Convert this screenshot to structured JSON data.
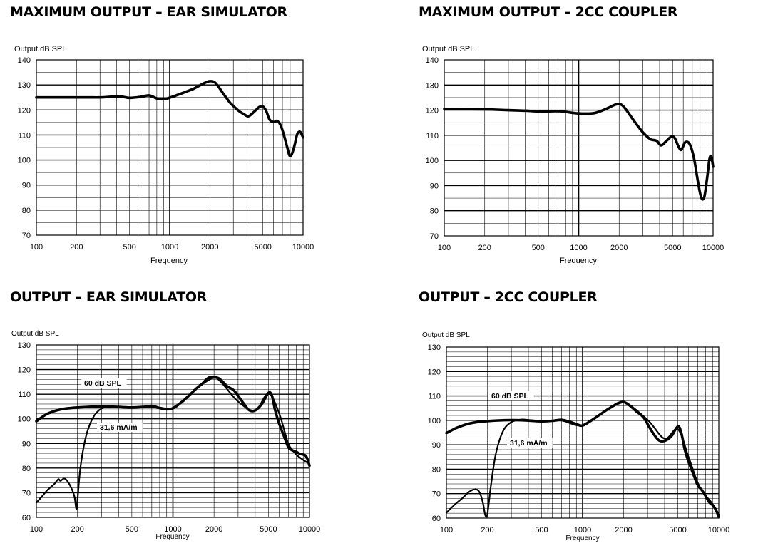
{
  "chart_data": [
    {
      "type": "line",
      "title": "MAXIMUM OUTPUT – EAR SIMULATOR",
      "ylabel": "Output dB SPL",
      "xlabel": "Frequency",
      "xscale": "log",
      "xlim": [
        100,
        10000
      ],
      "ylim": [
        70,
        140
      ],
      "x_tick_labels": [
        "100",
        "200",
        "500",
        "1000",
        "2000",
        "5000",
        "10000"
      ],
      "y_tick_labels": [
        "70",
        "80",
        "90",
        "100",
        "110",
        "120",
        "130",
        "140"
      ],
      "grid": true,
      "series": [
        {
          "name": "",
          "x": [
            100,
            150,
            200,
            250,
            300,
            350,
            400,
            450,
            500,
            600,
            700,
            800,
            900,
            1000,
            1200,
            1500,
            1800,
            2000,
            2200,
            2500,
            2800,
            3000,
            3300,
            3600,
            3900,
            4300,
            4700,
            5000,
            5300,
            5600,
            6000,
            6400,
            6800,
            7200,
            7600,
            8000,
            8500,
            9000,
            9300,
            9600,
            10000
          ],
          "y": [
            125,
            125,
            125,
            125,
            125,
            125.2,
            125.5,
            125.2,
            124.8,
            125.2,
            125.8,
            124.6,
            124.3,
            124.9,
            126.4,
            128.4,
            130.6,
            131.5,
            130.8,
            126.8,
            123.2,
            121.6,
            119.6,
            118.3,
            117.5,
            119.3,
            121.2,
            121.4,
            119.5,
            116.2,
            115.2,
            115.6,
            113.8,
            109.8,
            105.2,
            101.5,
            104.5,
            110,
            111.2,
            111,
            109
          ]
        }
      ]
    },
    {
      "type": "line",
      "title": "MAXIMUM OUTPUT – 2CC COUPLER",
      "ylabel": "Output dB SPL",
      "xlabel": "Frequency",
      "xscale": "log",
      "xlim": [
        100,
        10000
      ],
      "ylim": [
        70,
        140
      ],
      "x_tick_labels": [
        "100",
        "200",
        "500",
        "1000",
        "2000",
        "5000",
        "10000"
      ],
      "y_tick_labels": [
        "70",
        "80",
        "90",
        "100",
        "110",
        "120",
        "130",
        "140"
      ],
      "grid": true,
      "series": [
        {
          "name": "",
          "x": [
            100,
            200,
            300,
            400,
            500,
            700,
            800,
            1000,
            1300,
            1600,
            1900,
            2100,
            2300,
            2600,
            3000,
            3400,
            3800,
            4100,
            4500,
            4900,
            5200,
            5500,
            5800,
            6200,
            6700,
            7200,
            7800,
            8200,
            8600,
            9000,
            9400,
            9700,
            10000
          ],
          "y": [
            120.5,
            120.3,
            120,
            119.8,
            119.5,
            119.6,
            119.3,
            118.7,
            118.8,
            120.5,
            122.3,
            122,
            119.5,
            115.5,
            111.2,
            108.5,
            107.8,
            106,
            107.8,
            109.5,
            108.8,
            105.8,
            104.2,
            107.2,
            106.5,
            101,
            90,
            85,
            85.5,
            92.5,
            100.5,
            101.5,
            97.5
          ]
        }
      ]
    },
    {
      "type": "line",
      "title": "OUTPUT – EAR SIMULATOR",
      "ylabel": "Output dB SPL",
      "xlabel": "Frequency",
      "xscale": "log",
      "xlim": [
        100,
        10000
      ],
      "ylim": [
        60,
        130
      ],
      "x_tick_labels": [
        "100",
        "200",
        "500",
        "1000",
        "2000",
        "5000",
        "10000"
      ],
      "y_tick_labels": [
        "60",
        "70",
        "80",
        "90",
        "100",
        "110",
        "120",
        "130"
      ],
      "grid": true,
      "annotations": [
        "60 dB SPL",
        "31,6 mA/m"
      ],
      "series": [
        {
          "name": "60 dB SPL",
          "x": [
            100,
            120,
            150,
            200,
            300,
            400,
            500,
            600,
            700,
            800,
            900,
            1000,
            1200,
            1500,
            1800,
            2000,
            2200,
            2500,
            2800,
            3200,
            3600,
            4000,
            4500,
            5000,
            5300,
            5600,
            6000,
            6500,
            7000,
            7500,
            8000,
            8500,
            9000,
            9500,
            10000
          ],
          "y": [
            99,
            102,
            103.8,
            104.6,
            105,
            104.8,
            104.6,
            104.8,
            105.2,
            104.4,
            104,
            104.3,
            107.5,
            112.5,
            115.8,
            116.8,
            116.2,
            113.2,
            111.5,
            107.2,
            103.6,
            103.4,
            106.2,
            110.5,
            109.5,
            103.5,
            98,
            93,
            88.5,
            87.2,
            86.6,
            85.8,
            85.5,
            84.6,
            81
          ]
        },
        {
          "name": "31,6 mA/m",
          "x": [
            100,
            110,
            120,
            135,
            145,
            150,
            160,
            170,
            180,
            190,
            196,
            200,
            210,
            230,
            260,
            300,
            350,
            400,
            500,
            700,
            1000,
            1500,
            2000,
            3000,
            4000,
            5000,
            6000,
            7000,
            8000,
            9000,
            10000
          ],
          "y": [
            66,
            68.5,
            71,
            73.5,
            75.5,
            74.8,
            75.8,
            74.5,
            72,
            68.5,
            63.5,
            67,
            80,
            92.5,
            100.5,
            104.2,
            105,
            104.6,
            104.5,
            104.8,
            104.1,
            112.4,
            117.1,
            107,
            103.4,
            110.3,
            102.2,
            90,
            85.6,
            83.3,
            81.8
          ]
        }
      ]
    },
    {
      "type": "line",
      "title": "OUTPUT – 2CC COUPLER",
      "ylabel": "Output dB SPL",
      "xlabel": "Frequency",
      "xscale": "log",
      "xlim": [
        100,
        10000
      ],
      "ylim": [
        60,
        130
      ],
      "x_tick_labels": [
        "100",
        "200",
        "500",
        "1000",
        "2000",
        "5000",
        "10000"
      ],
      "y_tick_labels": [
        "60",
        "70",
        "80",
        "90",
        "100",
        "110",
        "120",
        "130"
      ],
      "grid": true,
      "annotations": [
        "60 dB SPL",
        "31,6 mA/m"
      ],
      "series": [
        {
          "name": "60 dB SPL",
          "x": [
            100,
            120,
            150,
            200,
            300,
            400,
            500,
            600,
            700,
            800,
            900,
            1000,
            1200,
            1500,
            1800,
            2000,
            2200,
            2500,
            2800,
            3200,
            3600,
            4000,
            4500,
            5000,
            5300,
            5600,
            6000,
            6500,
            7000,
            7500,
            8000,
            8500,
            9000,
            9500,
            10000
          ],
          "y": [
            94.8,
            97,
            98.8,
            99.7,
            100.1,
            99.9,
            99.6,
            99.8,
            100.2,
            99.4,
            98.5,
            97.9,
            100.5,
            104.2,
            106.8,
            107.5,
            106.2,
            103.5,
            101.2,
            95.8,
            92,
            91.6,
            93.6,
            97.5,
            95,
            88.5,
            83,
            78,
            73.5,
            71.5,
            69,
            66.5,
            65.3,
            63.5,
            60.5
          ]
        },
        {
          "name": "31,6 mA/m",
          "x": [
            100,
            115,
            130,
            145,
            155,
            165,
            175,
            185,
            193,
            200,
            212,
            230,
            260,
            300,
            350,
            400,
            500,
            700,
            1000,
            1500,
            2000,
            3000,
            4000,
            5000,
            6000,
            7000,
            8000,
            9000,
            10000
          ],
          "y": [
            62.2,
            65.5,
            68,
            70.5,
            71.5,
            71.8,
            70.6,
            66.5,
            61.2,
            61.7,
            73,
            86,
            95.5,
            99.3,
            100.3,
            100.2,
            99.7,
            99.9,
            98,
            104.1,
            107.4,
            100.2,
            92.5,
            96.4,
            85,
            74.5,
            69.3,
            65.8,
            61.5
          ]
        }
      ]
    }
  ]
}
